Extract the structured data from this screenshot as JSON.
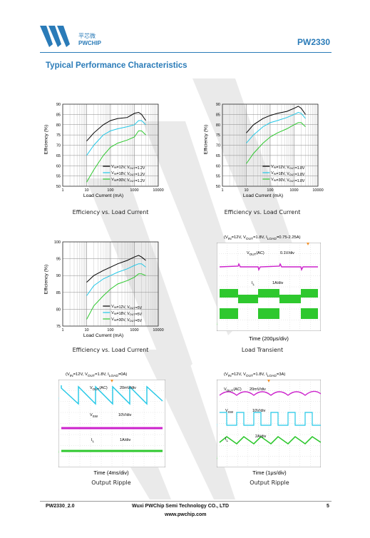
{
  "header": {
    "logo_cn": "平芯微",
    "logo_en": "PWCHIP",
    "part_number": "PW2330"
  },
  "section_title": "Typical Performance Characteristics",
  "colors": {
    "brand": "#2a7bb8",
    "black": "#000000",
    "cyan": "#22c7e6",
    "green": "#2ec82e",
    "magenta": "#cc22cc"
  },
  "charts": [
    {
      "caption": "Efficiency vs. Load Current",
      "ylabel": "Efficiency (%)",
      "xlabel": "Load Current (mA)",
      "yticks": [
        "90",
        "85",
        "80",
        "75",
        "70",
        "65",
        "60",
        "55",
        "50"
      ],
      "xticks": [
        "1",
        "10",
        "100",
        "1000",
        "10000"
      ],
      "legend": [
        {
          "vin": "V",
          "vin_sub": "IN",
          "vin_val": "=12V, V",
          "vout_sub": "OUT",
          "vout_val": "=1.2V"
        },
        {
          "vin": "V",
          "vin_sub": "IN",
          "vin_val": "=18V, V",
          "vout_sub": "OUT",
          "vout_val": "=1.2V"
        },
        {
          "vin": "V",
          "vin_sub": "IN",
          "vin_val": "=30V, V",
          "vout_sub": "OUT",
          "vout_val": "=1.2V"
        }
      ]
    },
    {
      "caption": "Efficiency vs. Load Current",
      "ylabel": "Efficiency (%)",
      "xlabel": "Load Current (mA)",
      "yticks": [
        "90",
        "85",
        "80",
        "75",
        "70",
        "65",
        "60",
        "55",
        "50"
      ],
      "xticks": [
        "1",
        "10",
        "100",
        "1000",
        "10000"
      ],
      "legend": [
        {
          "vin": "V",
          "vin_sub": "IN",
          "vin_val": "=12V, V",
          "vout_sub": "OUT",
          "vout_val": "=1.8V"
        },
        {
          "vin": "V",
          "vin_sub": "IN",
          "vin_val": "=18V, V",
          "vout_sub": "OUT",
          "vout_val": "=1.8V"
        },
        {
          "vin": "V",
          "vin_sub": "IN",
          "vin_val": "=30V, V",
          "vout_sub": "OUT",
          "vout_val": "=1.8V"
        }
      ]
    },
    {
      "caption": "Efficiency vs. Load Current",
      "ylabel": "Efficiency (%)",
      "xlabel": "Load Current (mA)",
      "yticks": [
        "100",
        "95",
        "90",
        "85",
        "80",
        "75"
      ],
      "xticks": [
        "1",
        "10",
        "100",
        "1000",
        "10000"
      ],
      "legend": [
        {
          "vin": "V",
          "vin_sub": "IN",
          "vin_val": "=12V, V",
          "vout_sub": "OUT",
          "vout_val": "=5V"
        },
        {
          "vin": "V",
          "vin_sub": "IN",
          "vin_val": "=18V, V",
          "vout_sub": "OUT",
          "vout_val": "=5V"
        },
        {
          "vin": "V",
          "vin_sub": "IN",
          "vin_val": "=30V, V",
          "vout_sub": "OUT",
          "vout_val": "=5V"
        }
      ]
    }
  ],
  "chart_data": [
    {
      "type": "line",
      "xscale": "log",
      "xlim": [
        1,
        10000
      ],
      "ylim": [
        50,
        90
      ],
      "xlabel": "Load Current (mA)",
      "ylabel": "Efficiency (%)",
      "series": [
        {
          "name": "VIN=12V, VOUT=1.2V",
          "x": [
            10,
            20,
            50,
            100,
            200,
            500,
            1000,
            1500,
            2000,
            3000
          ],
          "y": [
            72,
            76,
            80,
            82,
            83,
            83.5,
            85.5,
            86,
            85,
            82
          ]
        },
        {
          "name": "VIN=18V, VOUT=1.2V",
          "x": [
            10,
            20,
            50,
            100,
            200,
            500,
            1000,
            1500,
            2000,
            3000
          ],
          "y": [
            65,
            70,
            75,
            77,
            78,
            79,
            80,
            82,
            82,
            80
          ]
        },
        {
          "name": "VIN=30V, VOUT=1.2V",
          "x": [
            10,
            20,
            50,
            100,
            200,
            500,
            1000,
            1500,
            2000,
            3000
          ],
          "y": [
            52,
            58,
            65,
            69,
            71,
            72.5,
            74,
            77,
            77,
            75
          ]
        }
      ]
    },
    {
      "type": "line",
      "xscale": "log",
      "xlim": [
        1,
        10000
      ],
      "ylim": [
        50,
        90
      ],
      "xlabel": "Load Current (mA)",
      "ylabel": "Efficiency (%)",
      "series": [
        {
          "name": "VIN=12V, VOUT=1.8V",
          "x": [
            10,
            20,
            50,
            100,
            200,
            500,
            1000,
            1500,
            2000,
            3000
          ],
          "y": [
            76,
            80,
            83,
            84.5,
            85.5,
            86.5,
            88,
            89,
            88,
            85
          ]
        },
        {
          "name": "VIN=18V, VOUT=1.8V",
          "x": [
            10,
            20,
            50,
            100,
            200,
            500,
            1000,
            1500,
            2000,
            3000
          ],
          "y": [
            71,
            75,
            79,
            81,
            82,
            83.5,
            85,
            86,
            85.5,
            83
          ]
        },
        {
          "name": "VIN=30V, VOUT=1.8V",
          "x": [
            10,
            20,
            50,
            100,
            200,
            500,
            1000,
            1500,
            2000,
            3000
          ],
          "y": [
            61,
            66,
            71,
            74,
            76,
            78,
            80,
            81,
            81,
            79
          ]
        }
      ]
    },
    {
      "type": "line",
      "xscale": "log",
      "xlim": [
        1,
        10000
      ],
      "ylim": [
        75,
        100
      ],
      "xlabel": "Load Current (mA)",
      "ylabel": "Efficiency (%)",
      "series": [
        {
          "name": "VIN=12V, VOUT=5V",
          "x": [
            10,
            20,
            50,
            100,
            200,
            500,
            1000,
            1500,
            2000,
            3000
          ],
          "y": [
            88,
            90,
            91.5,
            92.5,
            93.5,
            94.5,
            95.5,
            96,
            95.5,
            94.5
          ]
        },
        {
          "name": "VIN=18V, VOUT=5V",
          "x": [
            10,
            20,
            50,
            100,
            200,
            500,
            1000,
            1500,
            2000,
            3000
          ],
          "y": [
            84,
            87,
            89,
            90,
            91,
            92,
            93,
            93.5,
            93.5,
            92.5
          ]
        },
        {
          "name": "VIN=30V, VOUT=5V",
          "x": [
            10,
            20,
            50,
            100,
            200,
            500,
            1000,
            1500,
            2000,
            3000
          ],
          "y": [
            77,
            81,
            84,
            86,
            87.5,
            88.5,
            89.5,
            90.5,
            90.5,
            90
          ]
        }
      ]
    }
  ],
  "scopes": [
    {
      "caption": "Load Transient",
      "cond": "(V",
      "cond_parts": [
        "IN",
        "=12V, V",
        "OUT",
        "=1.8V, I",
        "LOAD",
        "=0.75-2.25A)"
      ],
      "time": "Time (200μs/div)",
      "ch1_label": "V",
      "ch1_sub": "OUT",
      "ch1_suf": "(AC)",
      "ch1_scale": "0.1V/div",
      "ch2_label": "I",
      "ch2_sub": "L",
      "ch2_scale": "1A/div"
    },
    {
      "caption": "Output Ripple",
      "cond": "(V",
      "cond_parts": [
        "IN",
        "=12V, V",
        "OUT",
        "=1.8V, I",
        "LOAD",
        "=0A)"
      ],
      "time": "Time (4ms/div)",
      "ch1_label": "V",
      "ch1_sub": "OUT",
      "ch1_suf": "(AC)",
      "ch1_scale": "20mV/div",
      "ch2_label": "V",
      "ch2_sub": "SW",
      "ch2_scale": "10V/div",
      "ch3_label": "I",
      "ch3_sub": "L",
      "ch3_scale": "1A/div"
    },
    {
      "caption": "Output Ripple",
      "cond": "(V",
      "cond_parts": [
        "IN",
        "=12V, V",
        "OUT",
        "=1.8V, I",
        "LOAD",
        "=3A)"
      ],
      "time": "Time (1μs/div)",
      "ch1_label": "V",
      "ch1_sub": "OUT",
      "ch1_suf": "(AC)",
      "ch1_scale": "20mV/div",
      "ch2_label": "V",
      "ch2_sub": "SW",
      "ch2_scale": "10V/div",
      "ch3_label": "I",
      "ch3_sub": "L",
      "ch3_scale": "2A/div"
    }
  ],
  "footer": {
    "doc": "PW2330_2.0",
    "company": "Wuxi PWChip Semi Technology CO., LTD",
    "web": "www.pwchip.com",
    "page": "5"
  }
}
